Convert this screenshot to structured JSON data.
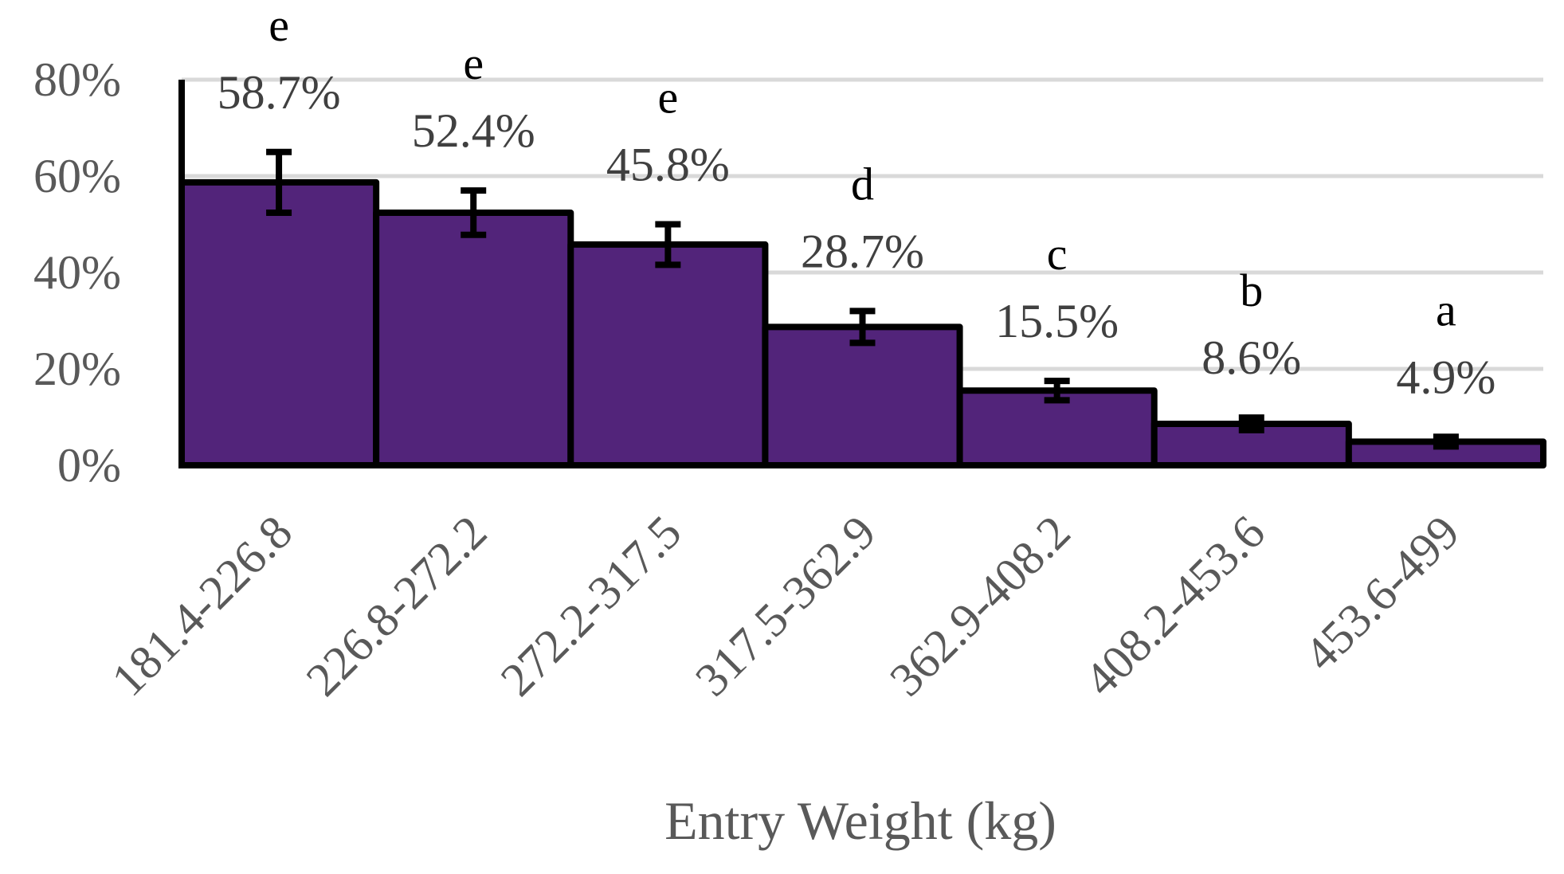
{
  "chart_data": {
    "type": "bar",
    "title": "",
    "xlabel": "Entry Weight (kg)",
    "ylabel": "",
    "ylim": [
      0,
      80
    ],
    "y_ticks": [
      "0%",
      "20%",
      "40%",
      "60%",
      "80%"
    ],
    "grid": true,
    "bar_color": "#52247a",
    "categories": [
      "181.4-226.8",
      "226.8-272.2",
      "272.2-317.5",
      "317.5-362.9",
      "362.9-408.2",
      "408.2-453.6",
      "453.6-499"
    ],
    "values": [
      58.7,
      52.4,
      45.8,
      28.7,
      15.5,
      8.6,
      4.9
    ],
    "value_labels": [
      "58.7%",
      "52.4%",
      "45.8%",
      "28.7%",
      "15.5%",
      "8.6%",
      "4.9%"
    ],
    "error_bars": [
      6.3,
      4.6,
      4.2,
      3.3,
      2.0,
      1.3,
      1.0
    ],
    "significance_letters": [
      "e",
      "e",
      "e",
      "d",
      "c",
      "b",
      "a"
    ]
  }
}
